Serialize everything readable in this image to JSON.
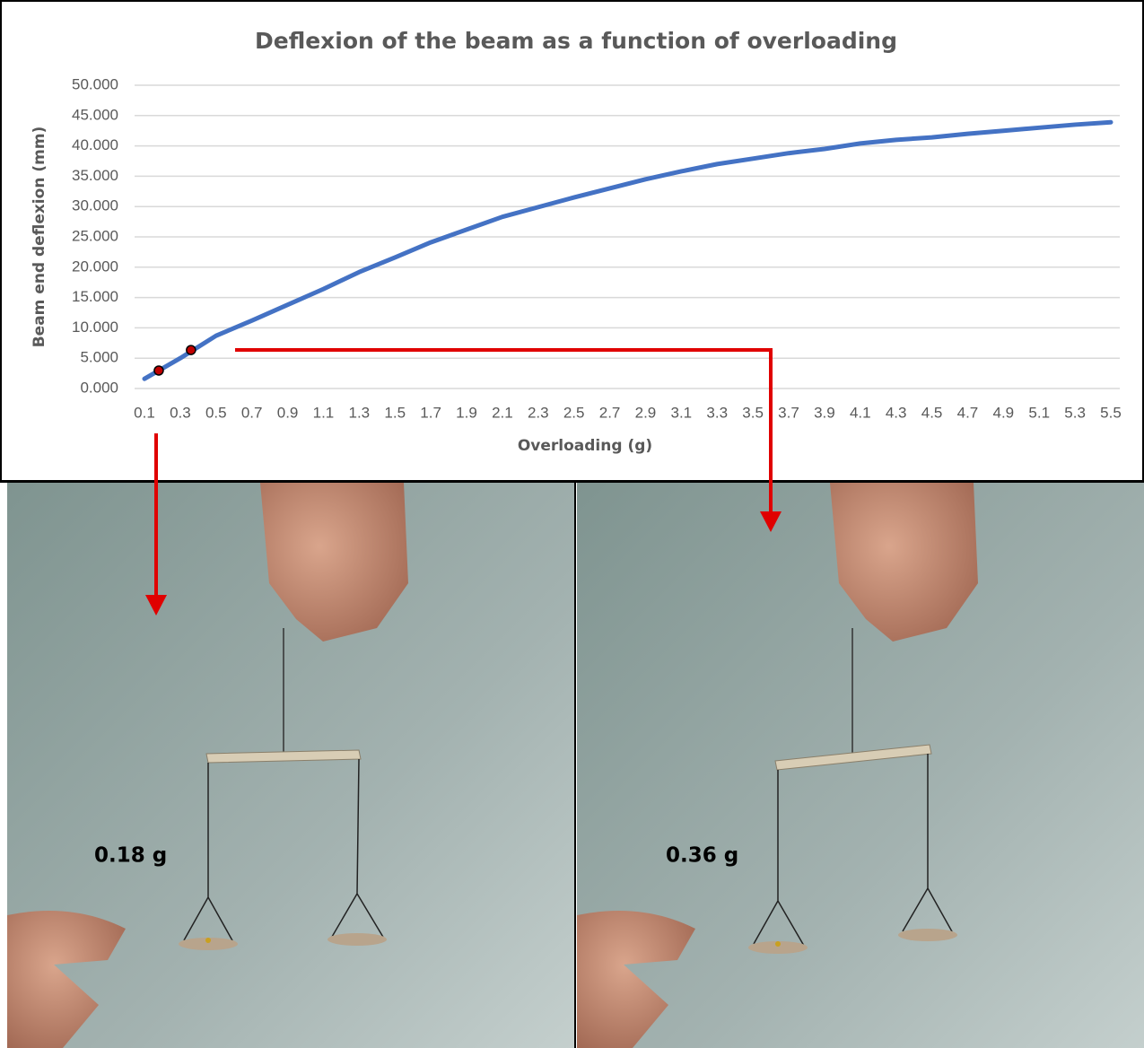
{
  "chart_data": {
    "type": "line",
    "title": "Deflexion of the beam as a function of overloading",
    "x_label": "Overloading (g)",
    "y_label": "Beam end deflexion (mm)",
    "x": [
      0.1,
      0.3,
      0.5,
      0.7,
      0.9,
      1.1,
      1.3,
      1.5,
      1.7,
      1.9,
      2.1,
      2.3,
      2.5,
      2.7,
      2.9,
      3.1,
      3.3,
      3.5,
      3.7,
      3.9,
      4.1,
      4.3,
      4.5,
      4.7,
      4.9,
      5.1,
      5.3,
      5.5
    ],
    "values": [
      1.6,
      5.0,
      8.7,
      11.2,
      13.8,
      16.4,
      19.2,
      21.6,
      24.1,
      26.2,
      28.3,
      29.9,
      31.5,
      33.0,
      34.5,
      35.8,
      37.0,
      37.9,
      38.8,
      39.5,
      40.4,
      41.0,
      41.4,
      42.0,
      42.5,
      43.0,
      43.5,
      43.9
    ],
    "color": "#4472c4",
    "markers": {
      "x": [
        0.18,
        0.36
      ],
      "values": [
        2.96,
        6.35
      ],
      "color": "#c00000"
    },
    "xlim": [
      0.1,
      5.5
    ],
    "xticks": [
      0.1,
      0.3,
      0.5,
      0.7,
      0.9,
      1.1,
      1.3,
      1.5,
      1.7,
      1.9,
      2.1,
      2.3,
      2.5,
      2.7,
      2.9,
      3.1,
      3.3,
      3.5,
      3.7,
      3.9,
      4.1,
      4.3,
      4.5,
      4.7,
      4.9,
      5.1,
      5.3,
      5.5
    ],
    "ylim": [
      0,
      50
    ],
    "yticks": [
      {
        "value": 0,
        "label": "0.000"
      },
      {
        "value": 5,
        "label": "5.000"
      },
      {
        "value": 10,
        "label": "10.000"
      },
      {
        "value": 15,
        "label": "15.000"
      },
      {
        "value": 20,
        "label": "20.000"
      },
      {
        "value": 25,
        "label": "25.000"
      },
      {
        "value": 30,
        "label": "30.000"
      },
      {
        "value": 35,
        "label": "35.000"
      },
      {
        "value": 40,
        "label": "40.000"
      },
      {
        "value": 45,
        "label": "45.000"
      },
      {
        "value": 50,
        "label": "50.000"
      }
    ],
    "grid": true
  },
  "photos": [
    {
      "label": "0.18 g"
    },
    {
      "label": "0.36 g"
    }
  ]
}
